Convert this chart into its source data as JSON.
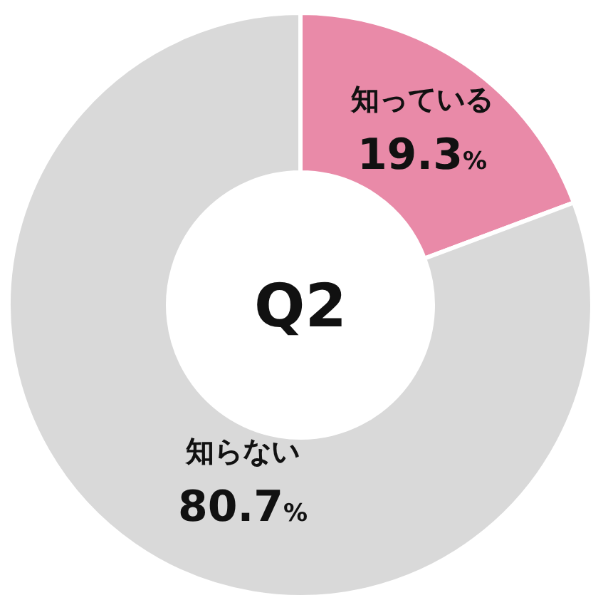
{
  "chart_data": {
    "type": "donut",
    "title": "Q2",
    "categories": [
      "知っている",
      "知らない"
    ],
    "values": [
      19.3,
      80.7
    ],
    "colors": [
      "#e98aa8",
      "#d9d9d9"
    ],
    "value_labels": [
      "19.3%",
      "80.7%"
    ]
  }
}
